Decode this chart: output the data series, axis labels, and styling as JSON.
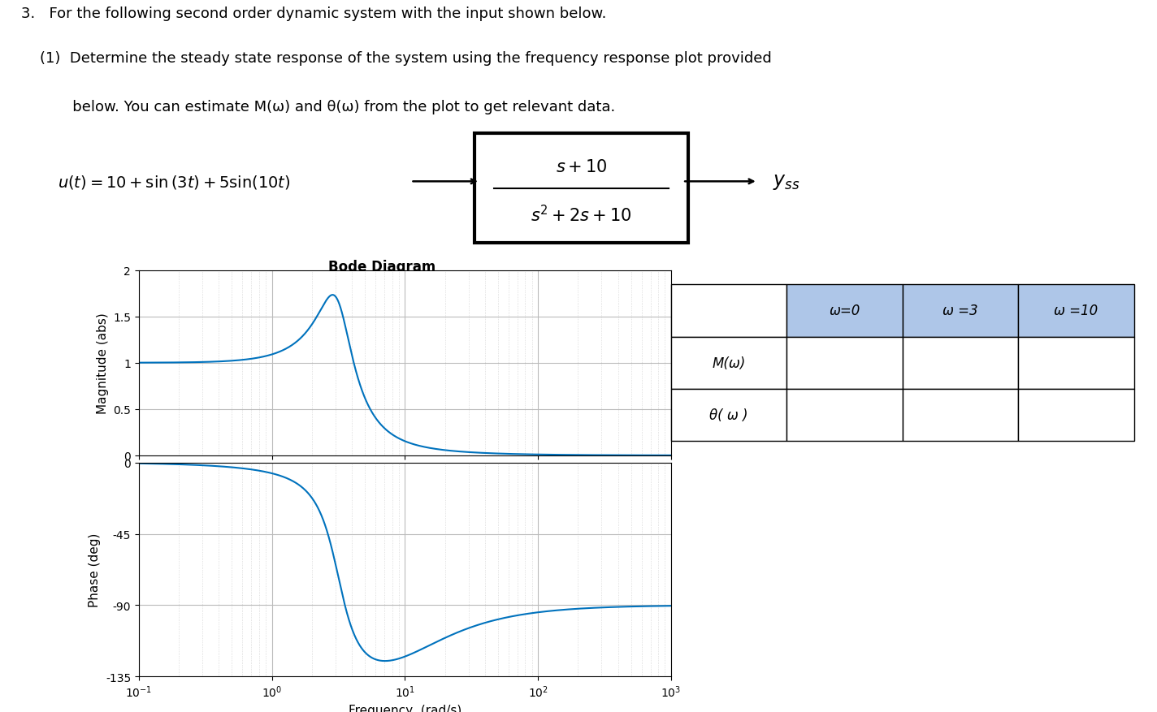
{
  "title_text": "3.   For the following second order dynamic system with the input shown below.",
  "subtitle1": "    (1)  Determine the steady state response of the system using the frequency response plot provided",
  "subtitle2": "           below. You can estimate M(ω) and θ(ω) from the plot to get relevant data.",
  "bode_title": "Bode Diagram",
  "mag_ylabel": "Magnitude (abs)",
  "phase_ylabel": "Phase (deg)",
  "freq_xlabel": "Frequency  (rad/s)",
  "mag_yticks": [
    0,
    0.5,
    1,
    1.5,
    2
  ],
  "phase_yticks": [
    -135,
    -90,
    -45,
    0
  ],
  "plot_color": "#0072BD",
  "grid_minor_color": "#D3D3D3",
  "grid_major_color": "#BBBBBB",
  "table_header_color": "#AEC6E8",
  "table_omega_labels": [
    "ω=0",
    "ω =3",
    "ω =10"
  ],
  "table_row_labels": [
    "M(ω)",
    "θ( ω )"
  ],
  "background_color": "#FFFFFF"
}
